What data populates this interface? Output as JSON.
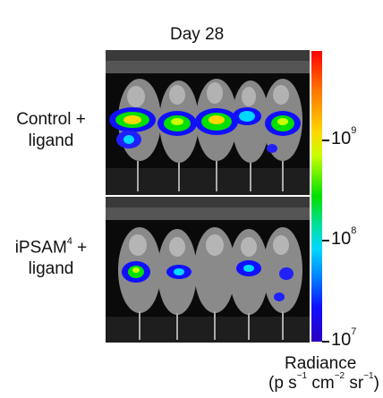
{
  "figure": {
    "title": "Day 28",
    "rows": [
      {
        "label_line1": "Control +",
        "label_line2": "ligand"
      },
      {
        "label_prefix": "iPSAM",
        "label_sup": "4",
        "label_suffix": " +",
        "label_line2": "ligand"
      }
    ],
    "colorbar": {
      "ticks": [
        {
          "base": "10",
          "exp": "9"
        },
        {
          "base": "10",
          "exp": "8"
        },
        {
          "base": "10",
          "exp": "7"
        }
      ],
      "label": "Radiance",
      "units": {
        "open": "(p s",
        "e1": "−1",
        "mid1": " cm",
        "e2": "−2",
        "mid2": " sr",
        "e3": "−1",
        "close": ")"
      },
      "colors": [
        "#ff0000",
        "#ffd800",
        "#00e000",
        "#00d8ff",
        "#1010ff",
        "#2a00c0"
      ]
    }
  },
  "photos": [
    {
      "name": "control-mice-photo",
      "description_icon": "mouse-icon"
    },
    {
      "name": "ipsam-mice-photo",
      "description_icon": "mouse-icon"
    }
  ]
}
